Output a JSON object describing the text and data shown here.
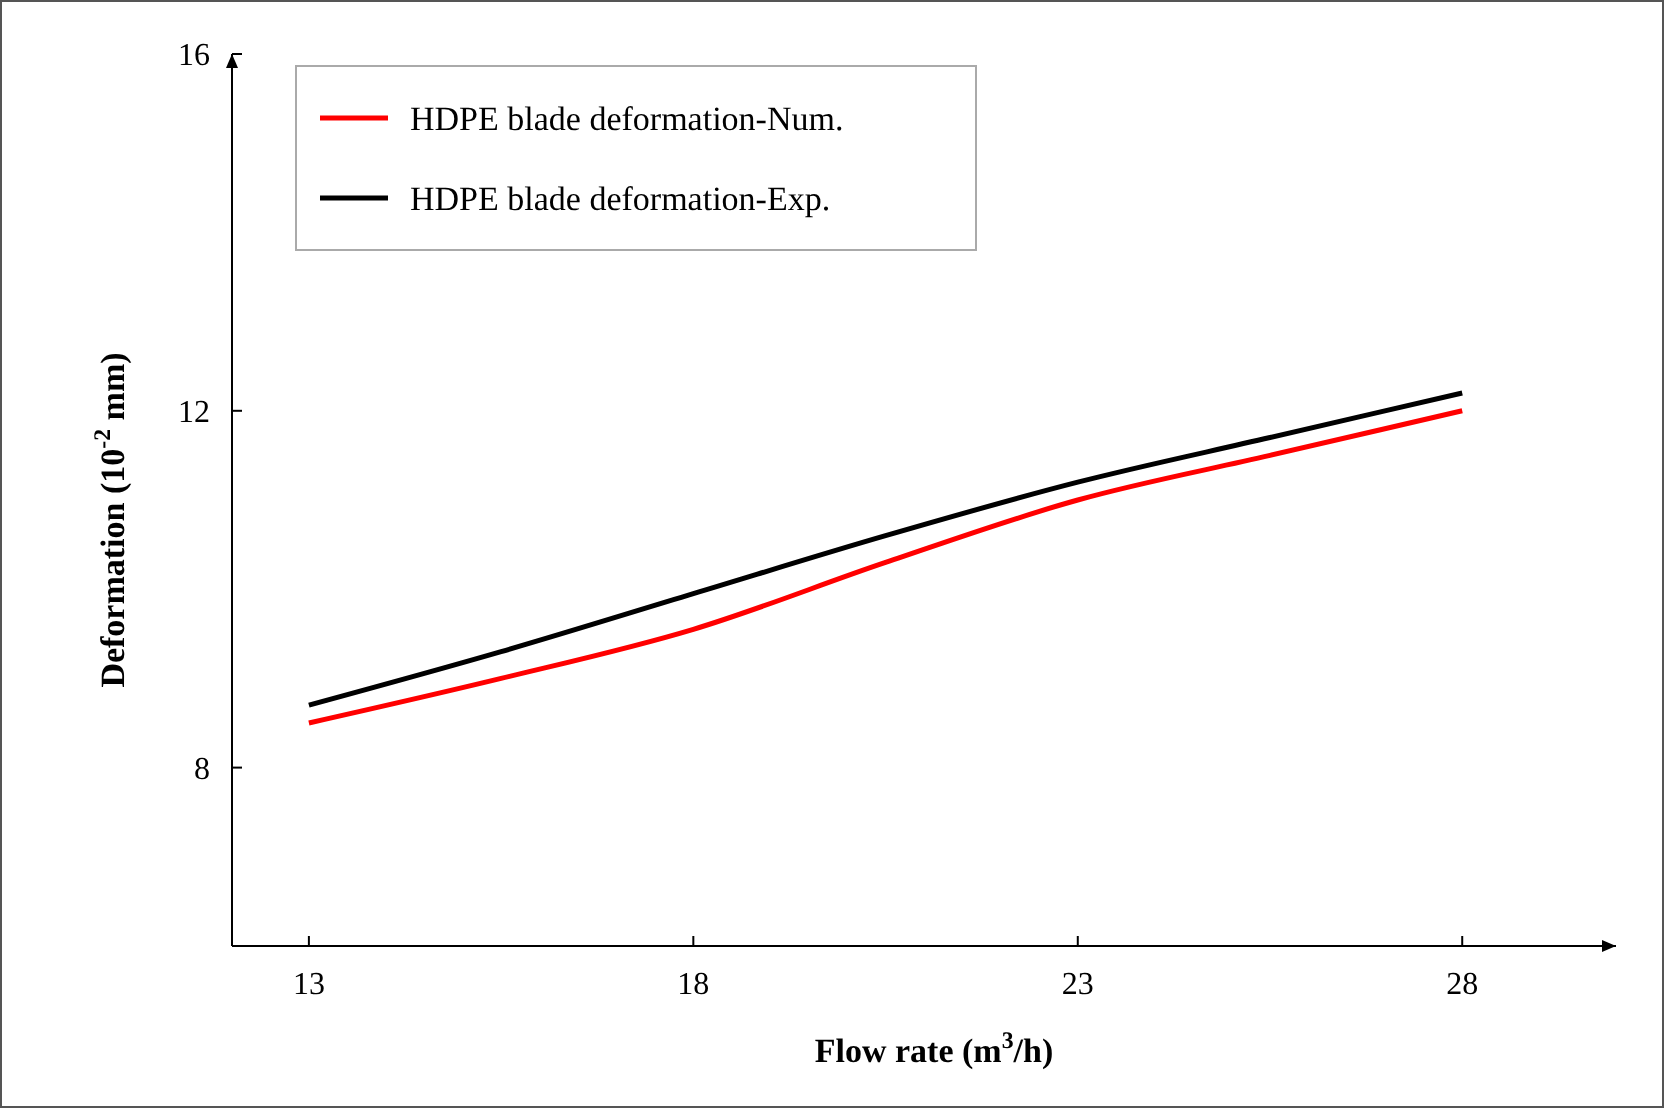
{
  "chart_data": {
    "type": "line",
    "xlabel": "Flow rate (m$^{3}$/h)",
    "ylabel": "Deformation (10$^{-2}$ mm)",
    "x": [
      13,
      15.5,
      18,
      20.5,
      23,
      25.5,
      28
    ],
    "series": [
      {
        "name": "HDPE blade deformation-Num.",
        "color": "#ff0000",
        "values": [
          8.5,
          9.0,
          9.55,
          10.3,
          11.0,
          11.5,
          12.0
        ]
      },
      {
        "name": "HDPE blade deformation-Exp.",
        "color": "#000000",
        "values": [
          8.7,
          9.3,
          9.95,
          10.6,
          11.2,
          11.7,
          12.2
        ]
      }
    ],
    "xlim": [
      12,
      30
    ],
    "xticks": [
      13,
      18,
      23,
      28
    ],
    "ylim": [
      6,
      16
    ],
    "yticks": [
      8,
      12,
      16
    ],
    "grid": false,
    "legend": "top left",
    "marker": "none",
    "line_style": "solid"
  }
}
